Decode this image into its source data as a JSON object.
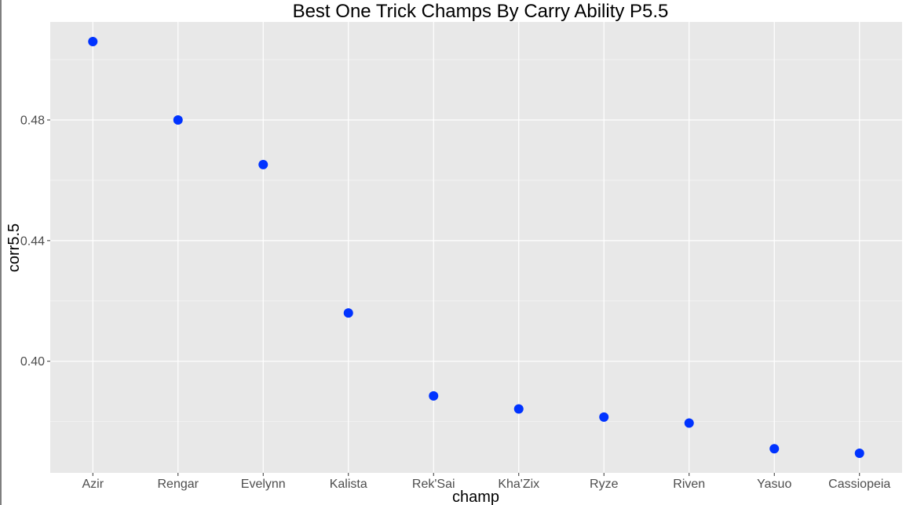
{
  "chart_data": {
    "type": "scatter",
    "title": "Best One Trick Champs By Carry Ability P5.5",
    "xlabel": "champ",
    "ylabel": "corr5.5",
    "categories": [
      "Azir",
      "Rengar",
      "Evelynn",
      "Kalista",
      "Rek'Sai",
      "Kha'Zix",
      "Ryze",
      "Riven",
      "Yasuo",
      "Cassiopeia"
    ],
    "values": [
      0.506,
      0.48,
      0.4652,
      0.416,
      0.3885,
      0.3842,
      0.3815,
      0.3795,
      0.371,
      0.3695
    ],
    "yticks": [
      0.4,
      0.44,
      0.48
    ],
    "ytick_labels": [
      "0.40",
      "0.44",
      "0.48"
    ],
    "ylim": [
      0.363,
      0.5125
    ],
    "point_color": "#0033ff",
    "panel_background": "#e8e8e8",
    "grid_color": "#ffffff",
    "grid": true
  }
}
